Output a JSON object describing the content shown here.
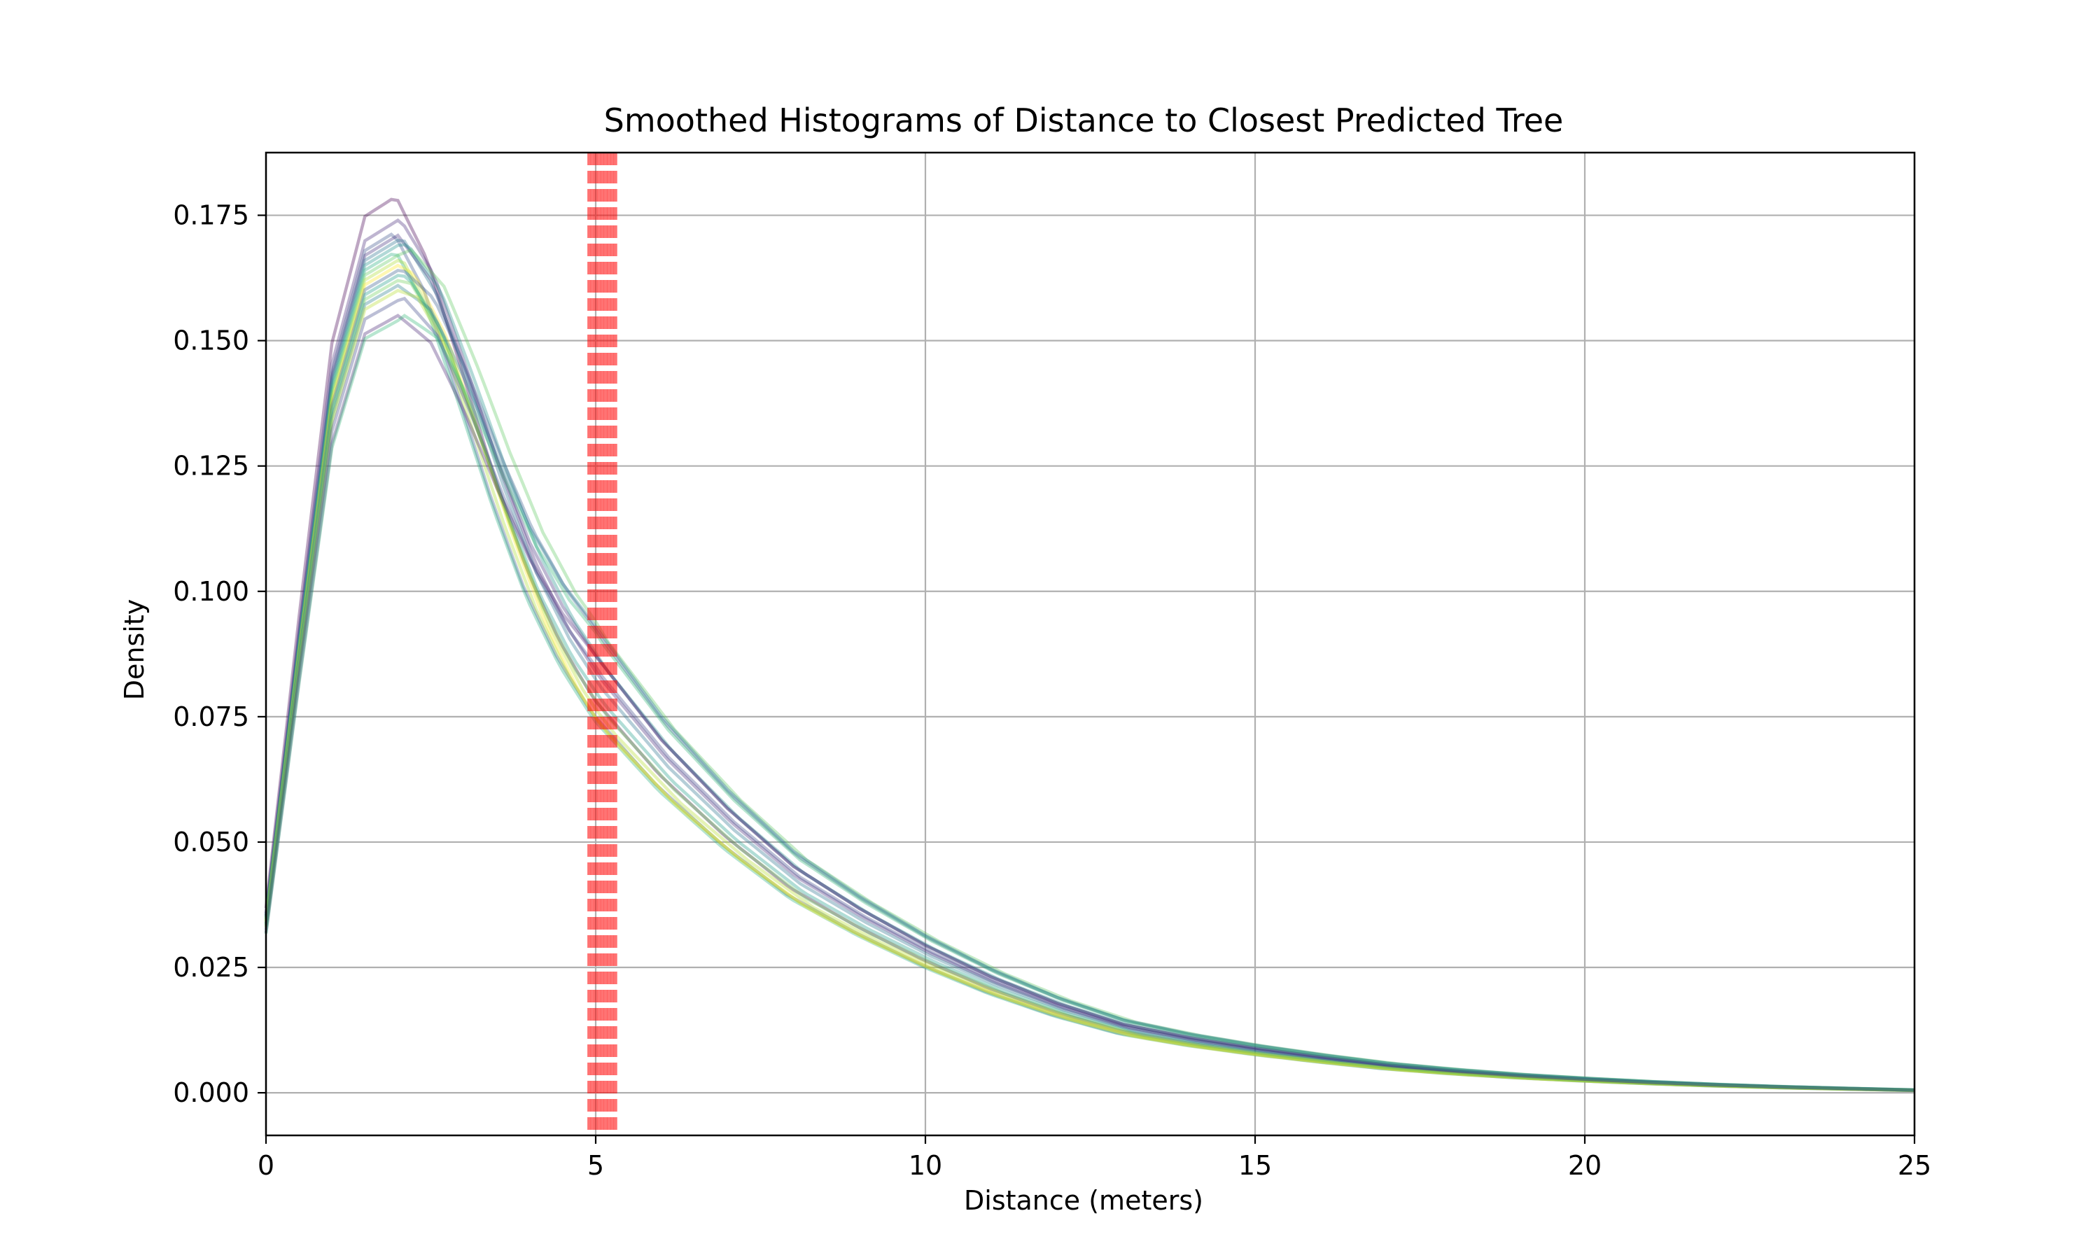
{
  "chart_data": {
    "type": "line",
    "title": "Smoothed Histograms of Distance to Closest Predicted Tree",
    "xlabel": "Distance (meters)",
    "ylabel": "Density",
    "xlim": [
      0,
      25
    ],
    "ylim": [
      -0.0085,
      0.1875
    ],
    "grid": true,
    "x_ticks": [
      0,
      5,
      10,
      15,
      20,
      25
    ],
    "x_tick_labels": [
      "0",
      "5",
      "10",
      "15",
      "20",
      "25"
    ],
    "y_ticks": [
      0.0,
      0.025,
      0.05,
      0.075,
      0.1,
      0.125,
      0.15,
      0.175
    ],
    "y_tick_labels": [
      "0.000",
      "0.025",
      "0.050",
      "0.075",
      "0.100",
      "0.125",
      "0.150",
      "0.175"
    ],
    "curve_shape": {
      "x": [
        0,
        0.5,
        1,
        1.5,
        2,
        2.5,
        3,
        3.5,
        4,
        4.5,
        5,
        5.5,
        6,
        7,
        8,
        9,
        10,
        11,
        12,
        13,
        14,
        15,
        16,
        17,
        18,
        19,
        20,
        21,
        22,
        23,
        24,
        25
      ],
      "y": [
        0.035,
        0.09,
        0.142,
        0.166,
        0.17,
        0.16,
        0.142,
        0.123,
        0.106,
        0.093,
        0.083,
        0.075,
        0.067,
        0.054,
        0.043,
        0.035,
        0.028,
        0.022,
        0.017,
        0.013,
        0.0105,
        0.0085,
        0.0068,
        0.0053,
        0.0042,
        0.0033,
        0.0026,
        0.002,
        0.0015,
        0.0011,
        0.0008,
        0.0005
      ]
    },
    "series": [
      {
        "peak": 0.179,
        "x_shift": -0.05,
        "tail": 0.95,
        "color": "#440154"
      },
      {
        "peak": 0.174,
        "x_shift": 0.05,
        "tail": 1.0,
        "color": "#472a7a"
      },
      {
        "peak": 0.172,
        "x_shift": -0.1,
        "tail": 0.92,
        "color": "#3b528b"
      },
      {
        "peak": 0.171,
        "x_shift": 0.0,
        "tail": 1.05,
        "color": "#46327e"
      },
      {
        "peak": 0.17,
        "x_shift": 0.1,
        "tail": 0.97,
        "color": "#2c728e"
      },
      {
        "peak": 0.169,
        "x_shift": 0.15,
        "tail": 1.02,
        "color": "#21918c"
      },
      {
        "peak": 0.168,
        "x_shift": -0.05,
        "tail": 0.9,
        "color": "#28ae80"
      },
      {
        "peak": 0.167,
        "x_shift": 0.2,
        "tail": 1.08,
        "color": "#5ec962"
      },
      {
        "peak": 0.166,
        "x_shift": 0.1,
        "tail": 0.88,
        "color": "#addc30"
      },
      {
        "peak": 0.165,
        "x_shift": 0.25,
        "tail": 0.85,
        "color": "#fde725"
      },
      {
        "peak": 0.164,
        "x_shift": 0.05,
        "tail": 1.1,
        "color": "#365c8d"
      },
      {
        "peak": 0.163,
        "x_shift": 0.15,
        "tail": 0.93,
        "color": "#1f9e89"
      },
      {
        "peak": 0.162,
        "x_shift": 0.2,
        "tail": 0.9,
        "color": "#6ece58"
      },
      {
        "peak": 0.161,
        "x_shift": 0.0,
        "tail": 1.12,
        "color": "#277f8e"
      },
      {
        "peak": 0.16,
        "x_shift": 0.3,
        "tail": 0.86,
        "color": "#b5de2b"
      },
      {
        "peak": 0.158,
        "x_shift": 0.1,
        "tail": 1.0,
        "color": "#3e4989"
      },
      {
        "peak": 0.155,
        "x_shift": 0.0,
        "tail": 1.05,
        "color": "#482475"
      },
      {
        "peak": 0.154,
        "x_shift": 0.1,
        "tail": 1.08,
        "color": "#35b779"
      }
    ],
    "vlines": [
      4.9,
      4.95,
      5.0,
      5.05,
      5.1,
      5.15,
      5.2,
      5.25,
      5.3
    ],
    "vline_color": "#ff0000",
    "vline_style": "dashed"
  }
}
